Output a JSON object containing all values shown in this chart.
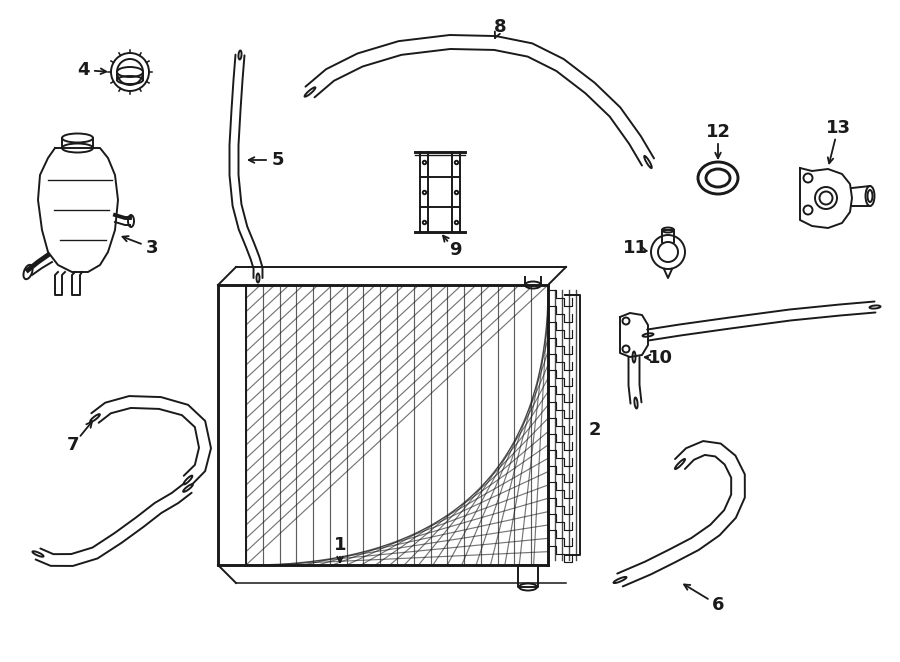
{
  "bg_color": "#ffffff",
  "line_color": "#1a1a1a",
  "lw": 1.4,
  "fig_w": 9.0,
  "fig_h": 6.62,
  "dpi": 100,
  "xlim": [
    0,
    900
  ],
  "ylim": [
    662,
    0
  ]
}
